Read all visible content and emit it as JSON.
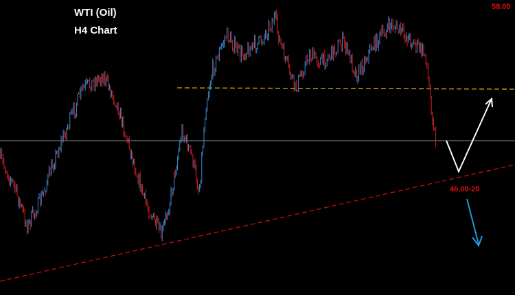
{
  "header": {
    "title": "WTI (Oil)",
    "subtitle": "H4 Chart"
  },
  "price_labels": [
    "58.00",
    "46.00-20"
  ]
}
